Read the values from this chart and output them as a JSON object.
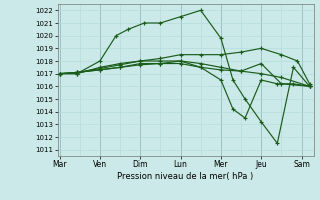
{
  "background_color": "#cce9e9",
  "grid_color_minor": "#b0d8d8",
  "grid_color_major": "#99c4c4",
  "line_color": "#1a5c1a",
  "xlabel": "Pression niveau de la mer( hPa )",
  "ylim": [
    1010.5,
    1022.5
  ],
  "yticks": [
    1011,
    1012,
    1013,
    1014,
    1015,
    1016,
    1017,
    1018,
    1019,
    1020,
    1021,
    1022
  ],
  "xtick_labels": [
    "Mar",
    "Ven",
    "Dim",
    "Lun",
    "Mer",
    "Jeu",
    "Sam"
  ],
  "xtick_positions": [
    0,
    1,
    2,
    3,
    4,
    5,
    6
  ],
  "xlim": [
    -0.05,
    6.3
  ],
  "series": [
    {
      "x": [
        0,
        0.43,
        1,
        1.4,
        1.7,
        2.1,
        2.5,
        3.0,
        3.5,
        4.0,
        4.3,
        4.6,
        5.0,
        5.4,
        5.8,
        6.2
      ],
      "y": [
        1017,
        1017,
        1018,
        1020,
        1020.5,
        1021,
        1021,
        1021.5,
        1022,
        1019.8,
        1016.5,
        1015,
        1013.2,
        1011.5,
        1017.5,
        1016
      ]
    },
    {
      "x": [
        0,
        0.43,
        1,
        1.5,
        2.0,
        2.5,
        3.0,
        3.5,
        4.0,
        4.3,
        4.6,
        5.0,
        5.4,
        5.8,
        6.2
      ],
      "y": [
        1017,
        1017,
        1017.5,
        1017.8,
        1018,
        1018,
        1018,
        1017.5,
        1016.5,
        1014.2,
        1013.5,
        1016.5,
        1016.2,
        1016.2,
        1016
      ]
    },
    {
      "x": [
        0,
        0.43,
        1,
        1.5,
        2.0,
        2.5,
        3.0,
        3.5,
        4.0,
        4.5,
        5.0,
        5.5,
        6.2
      ],
      "y": [
        1017,
        1017.1,
        1017.3,
        1017.5,
        1017.7,
        1017.8,
        1018,
        1017.8,
        1017.5,
        1017.2,
        1017,
        1016.7,
        1016
      ]
    },
    {
      "x": [
        0,
        0.43,
        1,
        1.5,
        2.0,
        2.5,
        3.0,
        3.5,
        4.0,
        4.5,
        5.0,
        5.5,
        5.9,
        6.2
      ],
      "y": [
        1017,
        1017.1,
        1017.4,
        1017.7,
        1018,
        1018.2,
        1018.5,
        1018.5,
        1018.5,
        1018.7,
        1019,
        1018.5,
        1018,
        1016.2
      ]
    },
    {
      "x": [
        0,
        0.43,
        1,
        1.5,
        2.0,
        2.5,
        3.0,
        3.5,
        4.0,
        4.5,
        5.0,
        5.5,
        6.2
      ],
      "y": [
        1017,
        1017.1,
        1017.3,
        1017.5,
        1017.8,
        1017.8,
        1017.8,
        1017.5,
        1017.3,
        1017.2,
        1017.8,
        1016.2,
        1016
      ]
    }
  ]
}
